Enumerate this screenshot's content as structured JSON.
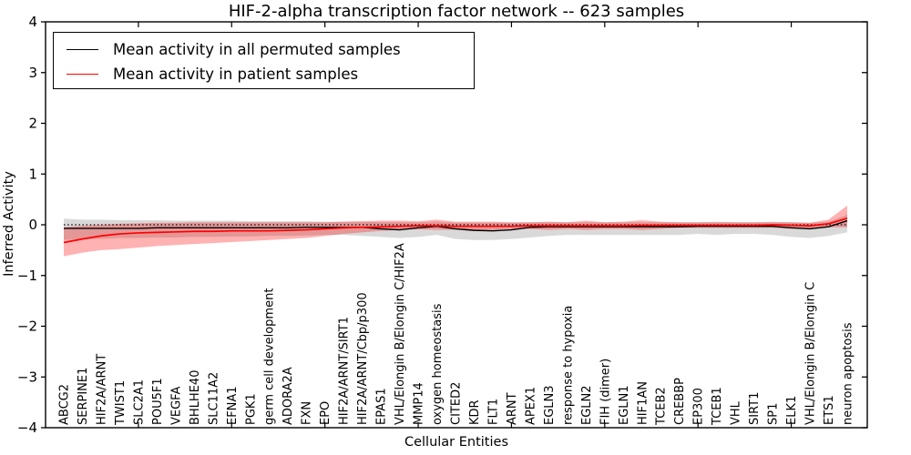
{
  "title": "HIF-2-alpha transcription factor network -- 623 samples",
  "legend": {
    "items": [
      {
        "label": "Mean activity in all permuted samples",
        "color": "#000000"
      },
      {
        "label": "Mean activity in patient samples",
        "color": "#ff0000"
      }
    ],
    "position": "upper left"
  },
  "colors": {
    "permuted_line": "#000000",
    "patient_line": "#ff0000",
    "permuted_band": "#000000",
    "patient_band": "#ff0000",
    "background": "#ffffff"
  },
  "chart_data": {
    "type": "line",
    "title": "HIF-2-alpha transcription factor network -- 623 samples",
    "xlabel": "Cellular Entities",
    "ylabel": "Inferred Activity",
    "ylim": [
      -4,
      4
    ],
    "yticks": [
      4,
      3,
      2,
      1,
      0,
      -1,
      -2,
      -3,
      -4
    ],
    "grid": false,
    "zero_reference_line": 0,
    "legend_position": "upper left",
    "categories": [
      "ABCG2",
      "SERPINE1",
      "HIF2A/ARNT",
      "TWIST1",
      "SLC2A1",
      "POU5F1",
      "VEGFA",
      "BHLHE40",
      "SLC11A2",
      "EFNA1",
      "PGK1",
      "germ cell development",
      "ADORA2A",
      "FXN",
      "EPO",
      "HIF2A/ARNT/SIRT1",
      "HIF2A/ARNT/Cbp/p300",
      "EPAS1",
      "VHL/Elongin B/Elongin C/HIF2A",
      "MMP14",
      "oxygen homeostasis",
      "CITED2",
      "KDR",
      "FLT1",
      "ARNT",
      "APEX1",
      "EGLN3",
      "response to hypoxia",
      "EGLN2",
      "FIH (dimer)",
      "EGLN1",
      "HIF1AN",
      "TCEB2",
      "CREBBP",
      "EP300",
      "TCEB1",
      "VHL",
      "SIRT1",
      "SP1",
      "ELK1",
      "VHL/Elongin B/Elongin C",
      "ETS1",
      "neuron apoptosis"
    ],
    "series": [
      {
        "name": "Mean activity in all permuted samples",
        "color": "#000000",
        "values": [
          -0.07,
          -0.07,
          -0.07,
          -0.07,
          -0.07,
          -0.06,
          -0.06,
          -0.06,
          -0.06,
          -0.06,
          -0.06,
          -0.06,
          -0.06,
          -0.05,
          -0.05,
          -0.05,
          -0.05,
          -0.08,
          -0.1,
          -0.06,
          -0.03,
          -0.08,
          -0.11,
          -0.12,
          -0.1,
          -0.05,
          -0.04,
          -0.04,
          -0.04,
          -0.04,
          -0.04,
          -0.04,
          -0.04,
          -0.04,
          -0.03,
          -0.03,
          -0.03,
          -0.03,
          -0.03,
          -0.06,
          -0.08,
          -0.04,
          0.08
        ],
        "band": {
          "upper": [
            0.12,
            0.1,
            0.1,
            0.09,
            0.09,
            0.09,
            0.08,
            0.08,
            0.08,
            0.08,
            0.07,
            0.07,
            0.07,
            0.07,
            0.06,
            0.06,
            0.06,
            0.05,
            0.05,
            0.05,
            0.06,
            0.04,
            0.04,
            0.04,
            0.04,
            0.05,
            0.05,
            0.05,
            0.05,
            0.05,
            0.05,
            0.05,
            0.05,
            0.05,
            0.05,
            0.06,
            0.05,
            0.05,
            0.06,
            0.05,
            0.04,
            0.06,
            0.2
          ],
          "lower": [
            -0.3,
            -0.28,
            -0.28,
            -0.26,
            -0.26,
            -0.25,
            -0.25,
            -0.24,
            -0.24,
            -0.23,
            -0.23,
            -0.22,
            -0.22,
            -0.21,
            -0.2,
            -0.2,
            -0.22,
            -0.24,
            -0.26,
            -0.24,
            -0.2,
            -0.28,
            -0.3,
            -0.3,
            -0.28,
            -0.25,
            -0.22,
            -0.2,
            -0.2,
            -0.2,
            -0.2,
            -0.2,
            -0.2,
            -0.2,
            -0.18,
            -0.2,
            -0.18,
            -0.18,
            -0.2,
            -0.24,
            -0.26,
            -0.22,
            -0.15
          ],
          "fill": "#000000",
          "fill_opacity": 0.15
        }
      },
      {
        "name": "Mean activity in patient samples",
        "color": "#ff0000",
        "values": [
          -0.35,
          -0.28,
          -0.22,
          -0.18,
          -0.16,
          -0.15,
          -0.14,
          -0.13,
          -0.13,
          -0.12,
          -0.12,
          -0.12,
          -0.11,
          -0.1,
          -0.08,
          -0.06,
          -0.05,
          -0.04,
          -0.03,
          -0.02,
          -0.02,
          -0.03,
          -0.03,
          -0.03,
          -0.03,
          -0.02,
          -0.02,
          -0.02,
          -0.02,
          -0.02,
          -0.02,
          -0.01,
          -0.01,
          -0.01,
          -0.01,
          -0.01,
          -0.01,
          -0.01,
          0.0,
          -0.01,
          -0.02,
          0.02,
          0.13
        ],
        "band": {
          "upper": [
            -0.05,
            -0.02,
            0.0,
            0.02,
            0.03,
            0.04,
            0.04,
            0.05,
            0.05,
            0.05,
            0.05,
            0.05,
            0.05,
            0.05,
            0.05,
            0.06,
            0.07,
            0.08,
            0.08,
            0.07,
            0.1,
            0.06,
            0.06,
            0.06,
            0.05,
            0.05,
            0.06,
            0.05,
            0.08,
            0.05,
            0.06,
            0.09,
            0.06,
            0.05,
            0.05,
            0.05,
            0.05,
            0.05,
            0.05,
            0.05,
            0.04,
            0.1,
            0.38
          ],
          "lower": [
            -0.62,
            -0.55,
            -0.5,
            -0.48,
            -0.45,
            -0.42,
            -0.4,
            -0.38,
            -0.36,
            -0.34,
            -0.32,
            -0.3,
            -0.28,
            -0.26,
            -0.22,
            -0.18,
            -0.15,
            -0.12,
            -0.1,
            -0.09,
            -0.1,
            -0.1,
            -0.12,
            -0.1,
            -0.08,
            -0.08,
            -0.1,
            -0.08,
            -0.1,
            -0.08,
            -0.08,
            -0.1,
            -0.08,
            -0.06,
            -0.06,
            -0.06,
            -0.06,
            -0.06,
            -0.06,
            -0.08,
            -0.08,
            -0.05,
            -0.05
          ],
          "fill": "#ff0000",
          "fill_opacity": 0.3
        }
      }
    ]
  }
}
